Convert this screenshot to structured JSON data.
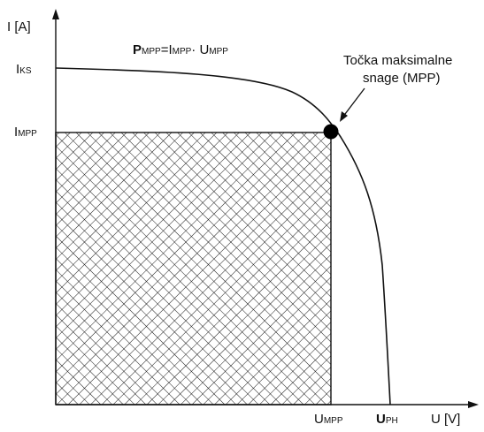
{
  "axes": {
    "y_label": "I [A]",
    "x_label": "U [V]"
  },
  "formula": {
    "p_letter": "P",
    "p_sub": "MPP",
    "i_letter": "=I",
    "i_sub": "MPP",
    "sep": "· U",
    "u_sub": "MPP"
  },
  "ticks": {
    "iks_letter": "I",
    "iks_sub": "KS",
    "impp_letter": "I",
    "impp_sub": "MPP",
    "umpp_letter": "U",
    "umpp_sub": "MPP",
    "uph_letter": "U",
    "uph_sub": "PH"
  },
  "annotation": {
    "line1": "Točka maksimalne",
    "line2": "snage (MPP)"
  },
  "colors": {
    "ink": "#111111",
    "hatch": "#1a1a1a",
    "background": "#ffffff"
  }
}
